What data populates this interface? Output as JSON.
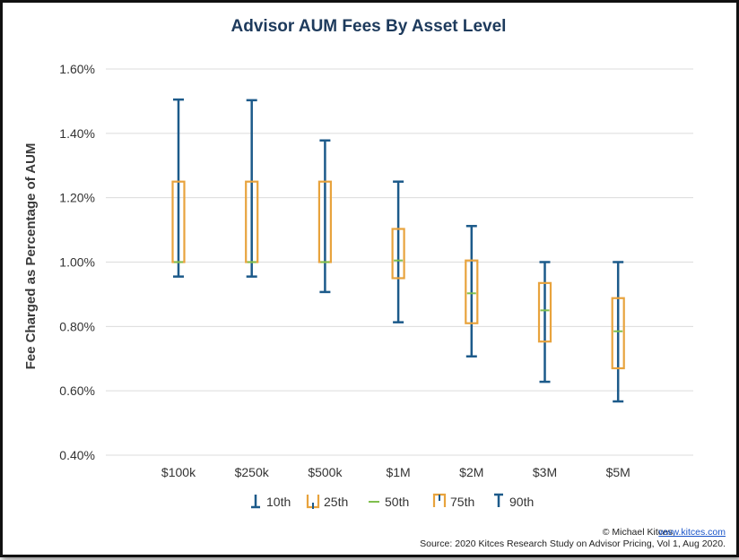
{
  "chart_data": {
    "type": "box",
    "title": "Advisor AUM Fees By Asset Level",
    "xlabel": "",
    "ylabel": "Fee Charged as Percentage of AUM",
    "ylim": [
      0.4,
      1.6
    ],
    "yticks": [
      "0.40%",
      "0.60%",
      "0.80%",
      "1.00%",
      "1.20%",
      "1.40%",
      "1.60%"
    ],
    "categories": [
      "$100k",
      "$250k",
      "$500k",
      "$1M",
      "$2M",
      "$3M",
      "$5M"
    ],
    "series": [
      {
        "name": "10th",
        "values": [
          0.955,
          0.955,
          0.907,
          0.813,
          0.707,
          0.628,
          0.567
        ]
      },
      {
        "name": "25th",
        "values": [
          1.0,
          1.0,
          1.0,
          0.95,
          0.81,
          0.753,
          0.67
        ]
      },
      {
        "name": "50th",
        "values": [
          1.0,
          1.0,
          1.0,
          1.005,
          0.903,
          0.85,
          0.785
        ]
      },
      {
        "name": "75th",
        "values": [
          1.25,
          1.25,
          1.25,
          1.103,
          1.005,
          0.935,
          0.888
        ]
      },
      {
        "name": "90th",
        "values": [
          1.505,
          1.503,
          1.378,
          1.25,
          1.112,
          1.0,
          1.0
        ]
      }
    ],
    "grid": true,
    "legend": "bottom",
    "colors": {
      "whisker": "#1c5a8a",
      "box": "#e8a33d",
      "median": "#7fbf4d",
      "grid": "#dcdcdc"
    }
  },
  "footer": {
    "credit": "© Michael Kitces,",
    "link": "www.kitces.com",
    "source": "Source: 2020 Kitces Research Study on Advisor Pricing, Vol 1, Aug 2020."
  }
}
